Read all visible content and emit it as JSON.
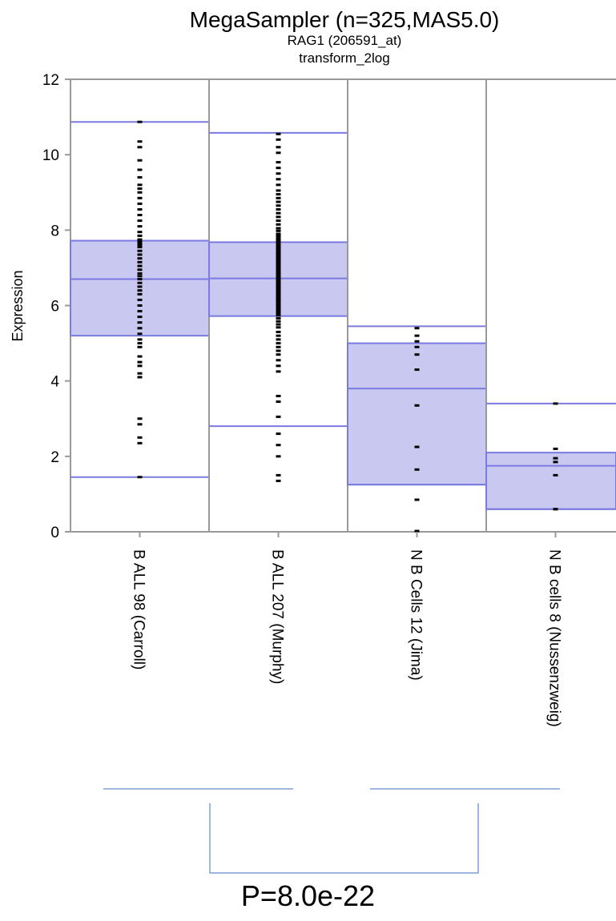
{
  "chart_data": {
    "type": "box",
    "title": "MegaSampler (n=325,MAS5.0)",
    "subtitle": "RAG1 (206591_at)",
    "subtitle2": "transform_2log",
    "ylabel": "Expression",
    "ylim": [
      0,
      12
    ],
    "yticks": [
      "0",
      "2",
      "4",
      "6",
      "8",
      "10",
      "12"
    ],
    "box_color": "#c8c8f0",
    "line_color": "#7a7ae0",
    "groups": [
      {
        "label": "B ALL 98 (Carroll)",
        "whisker_low": 1.45,
        "q1": 5.2,
        "median": 6.7,
        "q3": 7.72,
        "whisker_high": 10.87,
        "points": [
          10.87,
          10.35,
          10.2,
          9.85,
          9.6,
          9.4,
          9.2,
          9.1,
          9.0,
          8.85,
          8.7,
          8.55,
          8.4,
          8.25,
          8.1,
          7.95,
          7.85,
          7.75,
          7.7,
          7.65,
          7.6,
          7.55,
          7.45,
          7.35,
          7.25,
          7.15,
          7.05,
          6.95,
          6.85,
          6.78,
          6.7,
          6.6,
          6.5,
          6.4,
          6.3,
          6.15,
          6.0,
          5.85,
          5.7,
          5.55,
          5.4,
          5.25,
          5.1,
          5.0,
          4.9,
          4.65,
          4.5,
          4.4,
          4.2,
          4.1,
          3.0,
          2.85,
          2.5,
          2.35,
          1.45
        ]
      },
      {
        "label": "B ALL 207 (Murphy)",
        "whisker_low": 2.8,
        "q1": 5.72,
        "median": 6.72,
        "q3": 7.68,
        "whisker_high": 10.58,
        "points": [
          10.55,
          10.4,
          10.2,
          10.05,
          9.8,
          9.65,
          9.5,
          9.35,
          9.2,
          9.05,
          8.95,
          8.85,
          8.75,
          8.65,
          8.55,
          8.45,
          8.35,
          8.25,
          8.15,
          8.05,
          7.98,
          7.9,
          7.84,
          7.78,
          7.72,
          7.66,
          7.6,
          7.54,
          7.48,
          7.42,
          7.36,
          7.3,
          7.24,
          7.18,
          7.12,
          7.06,
          7.0,
          6.94,
          6.88,
          6.82,
          6.76,
          6.7,
          6.64,
          6.58,
          6.52,
          6.46,
          6.4,
          6.34,
          6.28,
          6.22,
          6.16,
          6.1,
          6.04,
          5.98,
          5.92,
          5.86,
          5.8,
          5.74,
          5.66,
          5.58,
          5.5,
          5.42,
          5.3,
          5.2,
          5.1,
          5.0,
          4.9,
          4.8,
          4.7,
          4.55,
          4.4,
          4.25,
          3.6,
          3.45,
          3.05,
          2.6,
          2.3,
          2.0,
          1.5,
          1.35
        ]
      },
      {
        "label": "N B Cells 12 (Jima)",
        "whisker_low": 1.25,
        "q1": 1.25,
        "median": 3.8,
        "q3": 5.0,
        "whisker_high": 5.45,
        "points": [
          5.4,
          5.2,
          5.05,
          4.9,
          4.7,
          4.3,
          3.35,
          2.25,
          1.65,
          0.85,
          0.02
        ]
      },
      {
        "label": "N B cells 8 (Nussenzweig)",
        "whisker_low": 0.6,
        "q1": 0.6,
        "median": 1.75,
        "q3": 2.1,
        "whisker_high": 3.4,
        "points": [
          3.4,
          2.2,
          1.95,
          1.85,
          1.5,
          0.6,
          0.6
        ]
      }
    ],
    "comparison_pvalue": "P=8.0e-22"
  }
}
